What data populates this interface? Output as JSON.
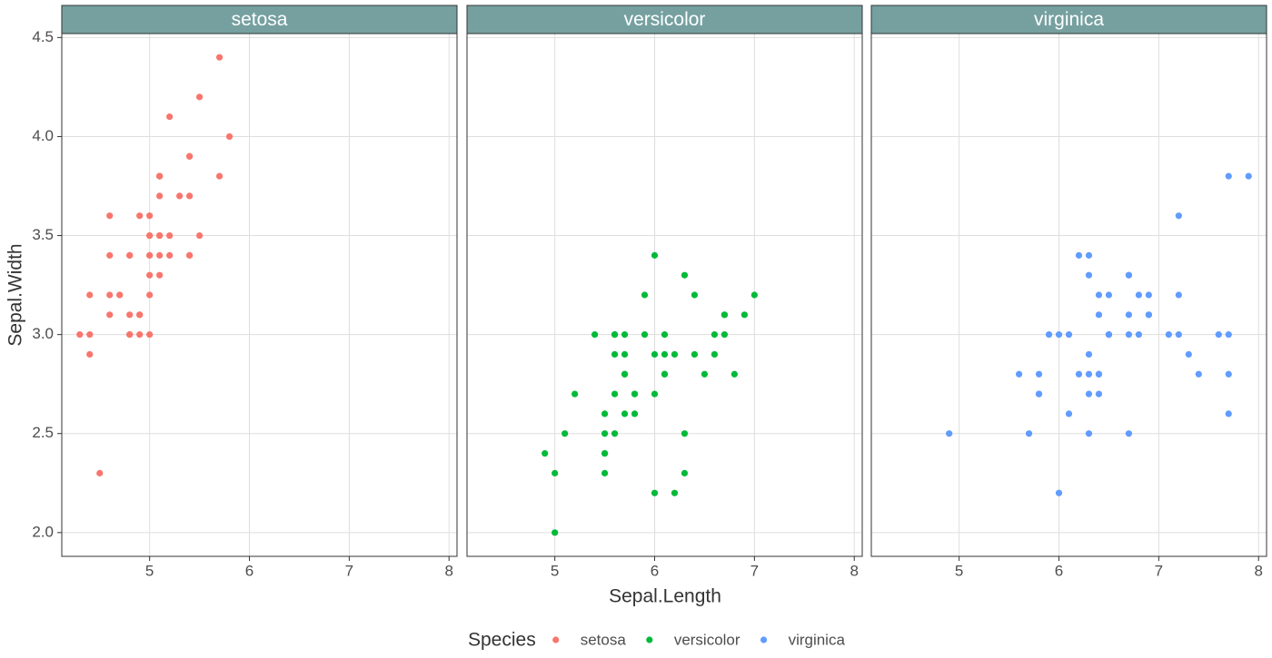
{
  "chart_data": {
    "type": "scatter",
    "x_label": "Sepal.Length",
    "y_label": "Sepal.Width",
    "legend_title": "Species",
    "legend": "bottom",
    "grid": true,
    "xlim": [
      4.12,
      8.08
    ],
    "ylim": [
      1.88,
      4.52
    ],
    "xticks": [
      5,
      6,
      7,
      8
    ],
    "yticks": [
      {
        "value": 2,
        "label": "2.0"
      },
      2.5,
      {
        "value": 3,
        "label": "3.0"
      },
      3.5,
      {
        "value": 4,
        "label": "4.0"
      },
      4.5
    ],
    "series": [
      {
        "name": "setosa",
        "color": "#F8766D",
        "x": [
          5.1,
          4.9,
          4.7,
          4.6,
          5.0,
          5.4,
          4.6,
          5.0,
          4.4,
          4.9,
          5.4,
          4.8,
          4.8,
          4.3,
          5.8,
          5.7,
          5.4,
          5.1,
          5.7,
          5.1,
          5.4,
          5.1,
          4.6,
          5.1,
          4.8,
          5.0,
          5.0,
          5.2,
          5.2,
          4.7,
          4.8,
          5.4,
          5.2,
          5.5,
          4.9,
          5.0,
          5.5,
          4.9,
          4.4,
          5.1,
          5.0,
          4.5,
          4.4,
          5.0,
          5.1,
          4.8,
          5.1,
          4.6,
          5.3,
          5.0
        ],
        "values": [
          3.5,
          3.0,
          3.2,
          3.1,
          3.6,
          3.9,
          3.4,
          3.4,
          2.9,
          3.1,
          3.7,
          3.4,
          3.0,
          3.0,
          4.0,
          4.4,
          3.9,
          3.5,
          3.8,
          3.8,
          3.4,
          3.7,
          3.6,
          3.3,
          3.4,
          3.0,
          3.4,
          3.5,
          3.4,
          3.2,
          3.1,
          3.4,
          4.1,
          4.2,
          3.1,
          3.2,
          3.5,
          3.6,
          3.0,
          3.4,
          3.5,
          2.3,
          3.2,
          3.5,
          3.8,
          3.0,
          3.8,
          3.2,
          3.7,
          3.3
        ]
      },
      {
        "name": "versicolor",
        "color": "#00BA38",
        "x": [
          7.0,
          6.4,
          6.9,
          5.5,
          6.5,
          5.7,
          6.3,
          4.9,
          6.6,
          5.2,
          5.0,
          5.9,
          6.0,
          6.1,
          5.6,
          6.7,
          5.6,
          5.8,
          6.2,
          5.6,
          5.9,
          6.1,
          6.3,
          6.1,
          6.4,
          6.6,
          6.8,
          6.7,
          6.0,
          5.7,
          5.5,
          5.5,
          5.8,
          6.0,
          5.4,
          6.0,
          6.7,
          6.3,
          5.6,
          5.5,
          5.5,
          6.1,
          5.8,
          5.0,
          5.6,
          5.7,
          5.7,
          6.2,
          5.1,
          5.7
        ],
        "values": [
          3.2,
          3.2,
          3.1,
          2.3,
          2.8,
          2.8,
          3.3,
          2.4,
          2.9,
          2.7,
          2.0,
          3.0,
          2.2,
          2.9,
          2.9,
          3.1,
          3.0,
          2.7,
          2.2,
          2.5,
          3.2,
          2.8,
          2.5,
          2.8,
          2.9,
          3.0,
          2.8,
          3.0,
          2.9,
          2.6,
          2.4,
          2.4,
          2.7,
          2.7,
          3.0,
          3.4,
          3.1,
          2.3,
          3.0,
          2.5,
          2.6,
          3.0,
          2.6,
          2.3,
          2.7,
          3.0,
          2.9,
          2.9,
          2.5,
          2.8
        ]
      },
      {
        "name": "virginica",
        "color": "#619CFF",
        "x": [
          6.3,
          5.8,
          7.1,
          6.3,
          6.5,
          7.6,
          4.9,
          7.3,
          6.7,
          7.2,
          6.5,
          6.4,
          6.8,
          5.7,
          5.8,
          6.4,
          6.5,
          7.7,
          7.7,
          6.0,
          6.9,
          5.6,
          7.7,
          6.3,
          6.7,
          7.2,
          6.2,
          6.1,
          6.4,
          7.2,
          7.4,
          7.9,
          6.4,
          6.3,
          6.1,
          7.7,
          6.3,
          6.4,
          6.0,
          6.9,
          6.7,
          6.9,
          5.8,
          6.8,
          6.7,
          6.7,
          6.3,
          6.5,
          6.2,
          5.9
        ],
        "values": [
          3.3,
          2.7,
          3.0,
          2.9,
          3.0,
          3.0,
          2.5,
          2.9,
          2.5,
          3.6,
          3.2,
          2.7,
          3.0,
          2.5,
          2.8,
          3.2,
          3.0,
          3.8,
          2.6,
          2.2,
          3.2,
          2.8,
          2.8,
          2.7,
          3.3,
          3.2,
          2.8,
          3.0,
          2.8,
          3.0,
          2.8,
          3.8,
          2.8,
          2.8,
          2.6,
          3.0,
          3.4,
          3.1,
          3.0,
          3.1,
          3.1,
          3.1,
          2.7,
          3.2,
          3.3,
          3.0,
          2.5,
          3.0,
          3.4,
          3.0
        ]
      }
    ]
  }
}
